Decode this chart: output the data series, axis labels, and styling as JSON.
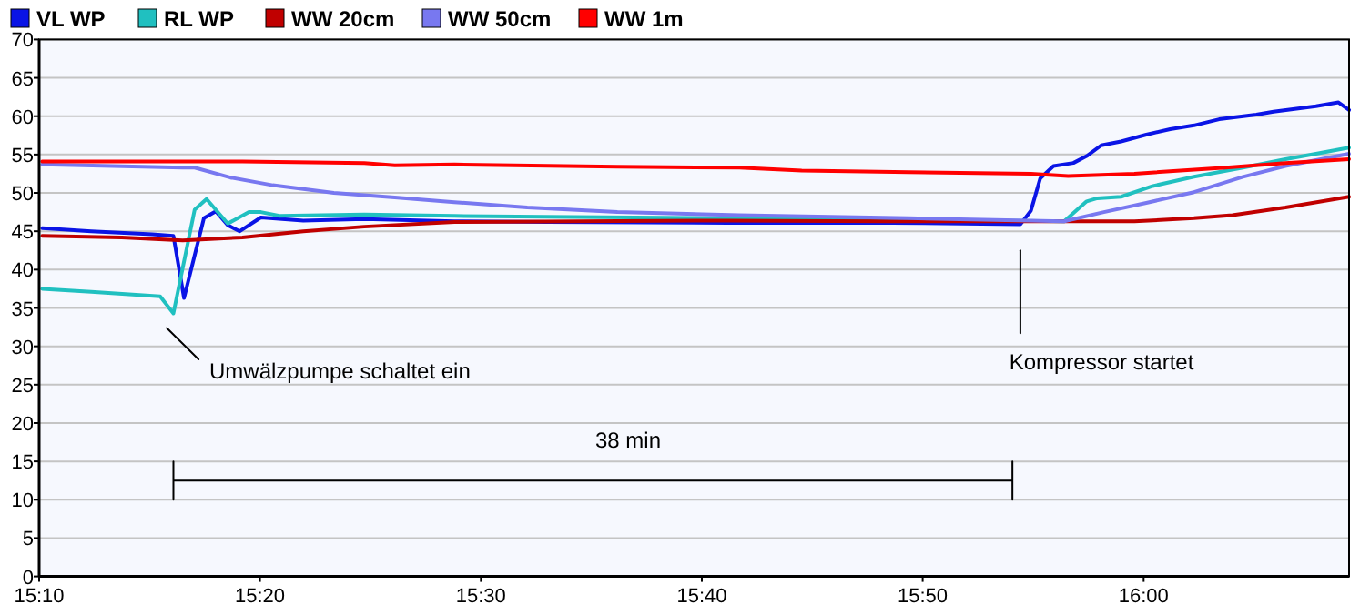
{
  "chart_data": {
    "type": "line",
    "legend": "top",
    "grid": "y",
    "xlim": [
      15.1667,
      16.155
    ],
    "xticks": [
      {
        "value": 15.1667,
        "label": "15:10"
      },
      {
        "value": 15.3333,
        "label": "15:20"
      },
      {
        "value": 15.5,
        "label": "15:30"
      },
      {
        "value": 15.6667,
        "label": "15:40"
      },
      {
        "value": 15.8333,
        "label": "15:50"
      },
      {
        "value": 16,
        "label": "16:00"
      }
    ],
    "ylim": [
      0,
      70
    ],
    "yticks": [
      0,
      5,
      10,
      15,
      20,
      25,
      30,
      35,
      40,
      45,
      50,
      55,
      60,
      65,
      70
    ],
    "series": [
      {
        "name": "VL WP",
        "color": "#0a14e6",
        "x": [
          15.169,
          15.206,
          15.252,
          15.268,
          15.276,
          15.291,
          15.3,
          15.309,
          15.318,
          15.334,
          15.366,
          15.412,
          15.48,
          15.55,
          15.687,
          15.81,
          15.907,
          15.915,
          15.922,
          15.932,
          15.947,
          15.957,
          15.968,
          15.983,
          16.002,
          16.02,
          16.038,
          16.057,
          16.085,
          16.098,
          16.13,
          16.147,
          16.155
        ],
        "values": [
          45.4,
          45,
          44.6,
          44.4,
          36.3,
          46.7,
          47.6,
          45.8,
          45,
          46.8,
          46.4,
          46.6,
          46.3,
          46.2,
          46.1,
          46.1,
          45.9,
          47.7,
          51.9,
          53.5,
          53.9,
          54.8,
          56.2,
          56.7,
          57.6,
          58.3,
          58.8,
          59.6,
          60.2,
          60.6,
          61.3,
          61.8,
          60.8
        ]
      },
      {
        "name": "RL WP",
        "color": "#20c0c0",
        "x": [
          15.169,
          15.206,
          15.258,
          15.268,
          15.284,
          15.293,
          15.309,
          15.325,
          15.334,
          15.348,
          15.412,
          15.48,
          15.548,
          15.687,
          15.81,
          15.94,
          15.957,
          15.965,
          15.983,
          16.007,
          16.038,
          16.075,
          16.107,
          16.13,
          16.155
        ],
        "values": [
          37.5,
          37.1,
          36.5,
          34.3,
          47.8,
          49.2,
          46,
          47.5,
          47.5,
          47,
          47.2,
          47,
          46.9,
          46.7,
          46.5,
          46.3,
          48.9,
          49.3,
          49.5,
          50.9,
          52.1,
          53.3,
          54.4,
          55.1,
          55.9
        ]
      },
      {
        "name": "WW 20cm",
        "color": "#c00000",
        "x": [
          15.169,
          15.229,
          15.275,
          15.32,
          15.366,
          15.412,
          15.48,
          15.687,
          15.81,
          15.993,
          16.038,
          16.067,
          16.107,
          16.155
        ],
        "values": [
          44.4,
          44.2,
          43.8,
          44.2,
          45,
          45.6,
          46.2,
          46.4,
          46.3,
          46.3,
          46.7,
          47.1,
          48.1,
          49.5
        ]
      },
      {
        "name": "WW 50cm",
        "color": "#7878f0",
        "x": [
          15.169,
          15.275,
          15.284,
          15.311,
          15.343,
          15.389,
          15.435,
          15.48,
          15.535,
          15.603,
          15.695,
          15.823,
          15.94,
          15.97,
          16.002,
          16.038,
          16.075,
          16.107,
          16.155
        ],
        "values": [
          53.7,
          53.3,
          53.3,
          52,
          51,
          50,
          49.4,
          48.8,
          48.1,
          47.5,
          47.1,
          46.7,
          46.3,
          47.5,
          48.7,
          50.1,
          52.1,
          53.5,
          55.1
        ]
      },
      {
        "name": "WW 1m",
        "color": "#ff0000",
        "x": [
          15.169,
          15.32,
          15.412,
          15.435,
          15.48,
          15.603,
          15.695,
          15.742,
          15.823,
          15.915,
          15.943,
          15.993,
          16.062,
          16.107,
          16.155
        ],
        "values": [
          54.1,
          54.1,
          53.9,
          53.6,
          53.7,
          53.4,
          53.3,
          52.9,
          52.7,
          52.5,
          52.2,
          52.5,
          53.3,
          53.9,
          54.4
        ]
      },
      {
        "color": "#000000",
        "x": [
          15.263,
          15.287
        ],
        "values": [
          32.4,
          28.3
        ]
      },
      {
        "color": "#000000",
        "x": [
          15.907,
          15.907
        ],
        "values": [
          42.5,
          31.7
        ]
      },
      {
        "color": "#000000",
        "x": [
          15.268,
          15.268,
          15.268,
          15.901,
          15.901,
          15.901
        ],
        "values": [
          15,
          10,
          12.5,
          12.5,
          15,
          10
        ]
      }
    ],
    "annotations": [
      "Umwälzpumpe schaltet ein",
      "Kompressor startet",
      "38 min"
    ]
  }
}
